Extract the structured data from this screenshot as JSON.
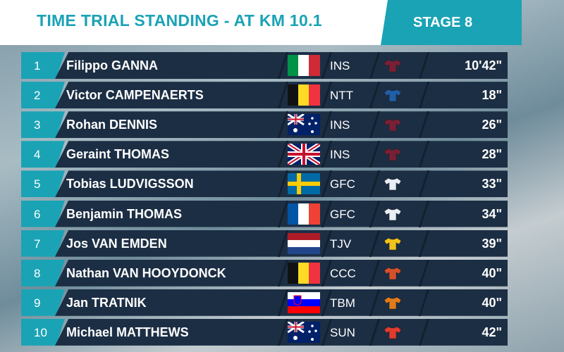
{
  "header": {
    "title": "TIME TRIAL STANDING - AT KM 10.1",
    "stage": "STAGE 8"
  },
  "table": {
    "rows": [
      [
        "1",
        "Filippo GANNA",
        "INS",
        "10'42\""
      ],
      [
        "2",
        "Victor CAMPENAERTS",
        "NTT",
        "18\""
      ],
      [
        "3",
        "Rohan DENNIS",
        "INS",
        "26\""
      ],
      [
        "4",
        "Geraint THOMAS",
        "INS",
        "28\""
      ],
      [
        "5",
        "Tobias LUDVIGSSON",
        "GFC",
        "33\""
      ],
      [
        "6",
        "Benjamin THOMAS",
        "GFC",
        "34\""
      ],
      [
        "7",
        "Jos VAN EMDEN",
        "TJV",
        "39\""
      ],
      [
        "8",
        "Nathan VAN HOOYDONCK",
        "CCC",
        "40\""
      ],
      [
        "9",
        "Jan TRATNIK",
        "TBM",
        "40\""
      ],
      [
        "10",
        "Michael MATTHEWS",
        "SUN",
        "42\""
      ]
    ]
  }
}
